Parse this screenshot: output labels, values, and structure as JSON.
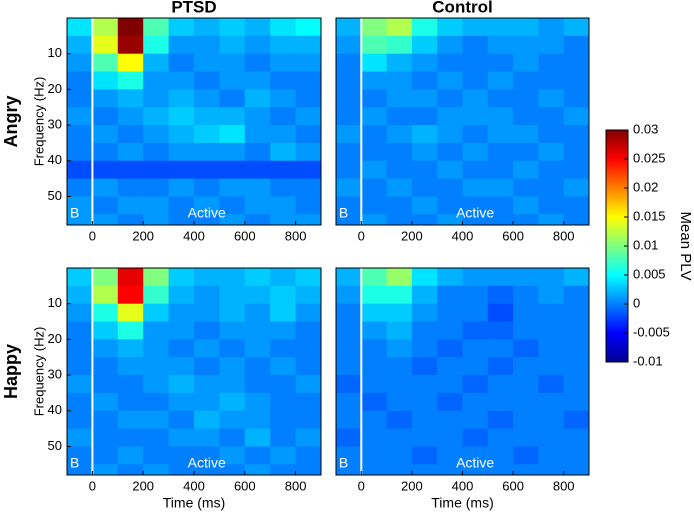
{
  "chart_data": [
    {
      "type": "heatmap",
      "title": "PTSD",
      "row_label": "Angry",
      "ylabel": "Frequency (Hz)",
      "annotations": [
        "B",
        "Active"
      ],
      "xlim": [
        -100,
        900
      ],
      "xticks": [
        0,
        200,
        400,
        600,
        800
      ],
      "ylim": [
        58,
        0
      ],
      "yticks": [
        10,
        20,
        30,
        40,
        50
      ],
      "x": [
        -50,
        50,
        150,
        250,
        350,
        450,
        550,
        650,
        750,
        850
      ],
      "y": [
        2.5,
        7.5,
        12.5,
        17.5,
        22.5,
        27.5,
        32.5,
        37.5,
        42.5,
        47.5,
        52.5,
        57.5
      ],
      "z": [
        [
          0.004,
          0.012,
          0.03,
          0.008,
          0.003,
          0.002,
          0.003,
          0.002,
          0.004,
          0.005
        ],
        [
          0.002,
          0.014,
          0.029,
          0.006,
          0.001,
          0.001,
          0.002,
          0.001,
          0.002,
          0.002
        ],
        [
          0.001,
          0.008,
          0.015,
          0.002,
          0,
          0.001,
          0.001,
          0,
          0.001,
          0.001
        ],
        [
          0,
          0.004,
          0.006,
          0.001,
          0.001,
          0,
          0.001,
          0.001,
          0,
          0
        ],
        [
          0,
          0.001,
          0.002,
          0.001,
          0.002,
          0.001,
          0,
          0.002,
          0.001,
          0
        ],
        [
          0.001,
          0,
          0.001,
          0.002,
          0.003,
          0.002,
          0.002,
          0.001,
          0,
          0.001
        ],
        [
          0,
          0.001,
          0,
          0.001,
          0.002,
          0.003,
          0.004,
          0.001,
          0.001,
          0
        ],
        [
          0,
          0,
          0.001,
          0,
          0.001,
          0.001,
          0.001,
          0,
          0.002,
          0.001
        ],
        [
          -0.002,
          -0.002,
          -0.002,
          -0.002,
          -0.002,
          -0.002,
          -0.002,
          -0.002,
          -0.002,
          -0.002
        ],
        [
          0,
          0.001,
          0,
          0,
          0.001,
          0,
          0.001,
          0.001,
          0,
          0
        ],
        [
          0.001,
          0,
          0.001,
          0.001,
          0,
          0.001,
          0,
          0.001,
          0.001,
          0
        ],
        [
          0.001,
          0.001,
          0,
          0.001,
          0,
          0,
          0.001,
          0,
          0.001,
          0.001
        ]
      ]
    },
    {
      "type": "heatmap",
      "title": "Control",
      "annotations": [
        "B",
        "Active"
      ],
      "xlim": [
        -100,
        900
      ],
      "xticks": [
        0,
        200,
        400,
        600,
        800
      ],
      "ylim": [
        58,
        0
      ],
      "x": [
        -50,
        50,
        150,
        250,
        350,
        450,
        550,
        650,
        750,
        850
      ],
      "y": [
        2.5,
        7.5,
        12.5,
        17.5,
        22.5,
        27.5,
        32.5,
        37.5,
        42.5,
        47.5,
        52.5,
        57.5
      ],
      "z": [
        [
          0.002,
          0.01,
          0.012,
          0.006,
          0.003,
          0.002,
          0.002,
          0.002,
          0.001,
          0.002
        ],
        [
          0.001,
          0.008,
          0.007,
          0.003,
          0.001,
          0,
          0.001,
          0.001,
          0.001,
          0
        ],
        [
          0,
          0.004,
          0.002,
          0.001,
          0,
          0,
          0,
          0.001,
          0,
          0
        ],
        [
          0,
          0.001,
          0.001,
          0,
          0.001,
          0,
          0.001,
          0,
          0,
          0
        ],
        [
          0,
          0,
          0.001,
          0.001,
          0,
          0.001,
          0,
          0,
          0.001,
          0
        ],
        [
          0,
          0.001,
          0,
          0,
          0.001,
          0.001,
          0.001,
          0,
          0,
          0.001
        ],
        [
          0.001,
          0,
          0.001,
          0.002,
          0.001,
          0,
          0.001,
          0.001,
          0,
          0
        ],
        [
          0,
          0,
          0,
          0.001,
          0,
          0.001,
          0,
          0,
          0.001,
          0
        ],
        [
          0,
          0.001,
          0,
          0,
          0.001,
          0,
          0,
          0.001,
          0,
          0
        ],
        [
          0.001,
          0,
          0.001,
          0,
          0,
          0.001,
          0.001,
          0,
          0,
          0.001
        ],
        [
          0,
          0,
          0,
          0.001,
          0,
          0,
          0,
          0.001,
          0,
          0
        ],
        [
          0,
          0.001,
          0,
          0,
          0.001,
          0,
          0,
          0,
          0.001,
          0
        ]
      ]
    },
    {
      "type": "heatmap",
      "row_label": "Happy",
      "ylabel": "Frequency (Hz)",
      "xlabel": "Time (ms)",
      "annotations": [
        "B",
        "Active"
      ],
      "xlim": [
        -100,
        900
      ],
      "xticks": [
        0,
        200,
        400,
        600,
        800
      ],
      "ylim": [
        58,
        0
      ],
      "yticks": [
        10,
        20,
        30,
        40,
        50
      ],
      "x": [
        -50,
        50,
        150,
        250,
        350,
        450,
        550,
        650,
        750,
        850
      ],
      "y": [
        2.5,
        7.5,
        12.5,
        17.5,
        22.5,
        27.5,
        32.5,
        37.5,
        42.5,
        47.5,
        52.5,
        57.5
      ],
      "z": [
        [
          0.003,
          0.01,
          0.026,
          0.01,
          0.003,
          0.002,
          0.002,
          0.003,
          0.002,
          0.003
        ],
        [
          0.002,
          0.012,
          0.025,
          0.007,
          0.002,
          0.001,
          0.002,
          0.002,
          0.003,
          0.002
        ],
        [
          0.001,
          0.006,
          0.014,
          0.003,
          0.001,
          0.001,
          0.002,
          0.001,
          0.003,
          0.001
        ],
        [
          0,
          0.003,
          0.006,
          0.001,
          0.001,
          0,
          0.001,
          0.001,
          0.001,
          0
        ],
        [
          0,
          0.001,
          0.002,
          0.001,
          0,
          0.001,
          0,
          0.001,
          0,
          0
        ],
        [
          0,
          0,
          0.001,
          0.001,
          0.001,
          0,
          0.001,
          0,
          0.001,
          0
        ],
        [
          0.001,
          0,
          0,
          0.001,
          0.002,
          0.001,
          0.001,
          0,
          0,
          0.001
        ],
        [
          0,
          0.001,
          0,
          0,
          0.001,
          0.001,
          0.002,
          0.001,
          0,
          0
        ],
        [
          0,
          0,
          0.001,
          0.001,
          0,
          0.002,
          0.001,
          0.001,
          0,
          0
        ],
        [
          0.001,
          0,
          0,
          0,
          0.001,
          0.001,
          0,
          0.002,
          0,
          0.001
        ],
        [
          0,
          0,
          0.001,
          0,
          0,
          0,
          0.001,
          0,
          0.001,
          0
        ],
        [
          0,
          0.001,
          0,
          0.001,
          0,
          0,
          0,
          0.001,
          0,
          0
        ]
      ]
    },
    {
      "type": "heatmap",
      "xlabel": "Time (ms)",
      "annotations": [
        "B",
        "Active"
      ],
      "xlim": [
        -100,
        900
      ],
      "xticks": [
        0,
        200,
        400,
        600,
        800
      ],
      "ylim": [
        58,
        0
      ],
      "x": [
        -50,
        50,
        150,
        250,
        350,
        450,
        550,
        650,
        750,
        850
      ],
      "y": [
        2.5,
        7.5,
        12.5,
        17.5,
        22.5,
        27.5,
        32.5,
        37.5,
        42.5,
        47.5,
        52.5,
        57.5
      ],
      "z": [
        [
          0.002,
          0.008,
          0.011,
          0.004,
          0.002,
          0.001,
          0.001,
          0.001,
          0.001,
          0.002
        ],
        [
          0.001,
          0.006,
          0.006,
          0.002,
          0,
          0,
          -0.001,
          0,
          0.001,
          0
        ],
        [
          0,
          0.003,
          0.003,
          0.001,
          0,
          0,
          -0.002,
          0,
          0,
          0
        ],
        [
          0,
          0.001,
          0.002,
          0,
          0,
          -0.001,
          -0.001,
          0,
          0,
          0
        ],
        [
          0,
          0,
          0.001,
          0,
          -0.001,
          0,
          0,
          -0.001,
          0,
          0
        ],
        [
          0,
          0,
          0,
          -0.001,
          0,
          0,
          -0.001,
          0,
          0,
          0
        ],
        [
          -0.001,
          0,
          0,
          0,
          0,
          -0.001,
          0,
          0,
          -0.001,
          0
        ],
        [
          0,
          -0.001,
          0,
          0,
          -0.001,
          0,
          0,
          0,
          0,
          0
        ],
        [
          0,
          0,
          -0.001,
          0,
          0,
          0,
          -0.001,
          0,
          0,
          -0.001
        ],
        [
          -0.001,
          0,
          0,
          0,
          0,
          -0.001,
          0,
          0,
          0,
          0
        ],
        [
          0,
          0,
          0,
          -0.001,
          0,
          0,
          0,
          -0.001,
          0,
          0
        ],
        [
          0,
          0,
          0,
          0,
          0,
          0,
          0,
          0,
          0,
          0
        ]
      ]
    }
  ],
  "colorbar": {
    "label": "Mean PLV",
    "colormap": "jet",
    "zlim": [
      -0.01,
      0.03
    ],
    "zticks": [
      0.03,
      0.025,
      0.02,
      0.015,
      0.01,
      0.005,
      0,
      -0.005,
      -0.01
    ]
  }
}
